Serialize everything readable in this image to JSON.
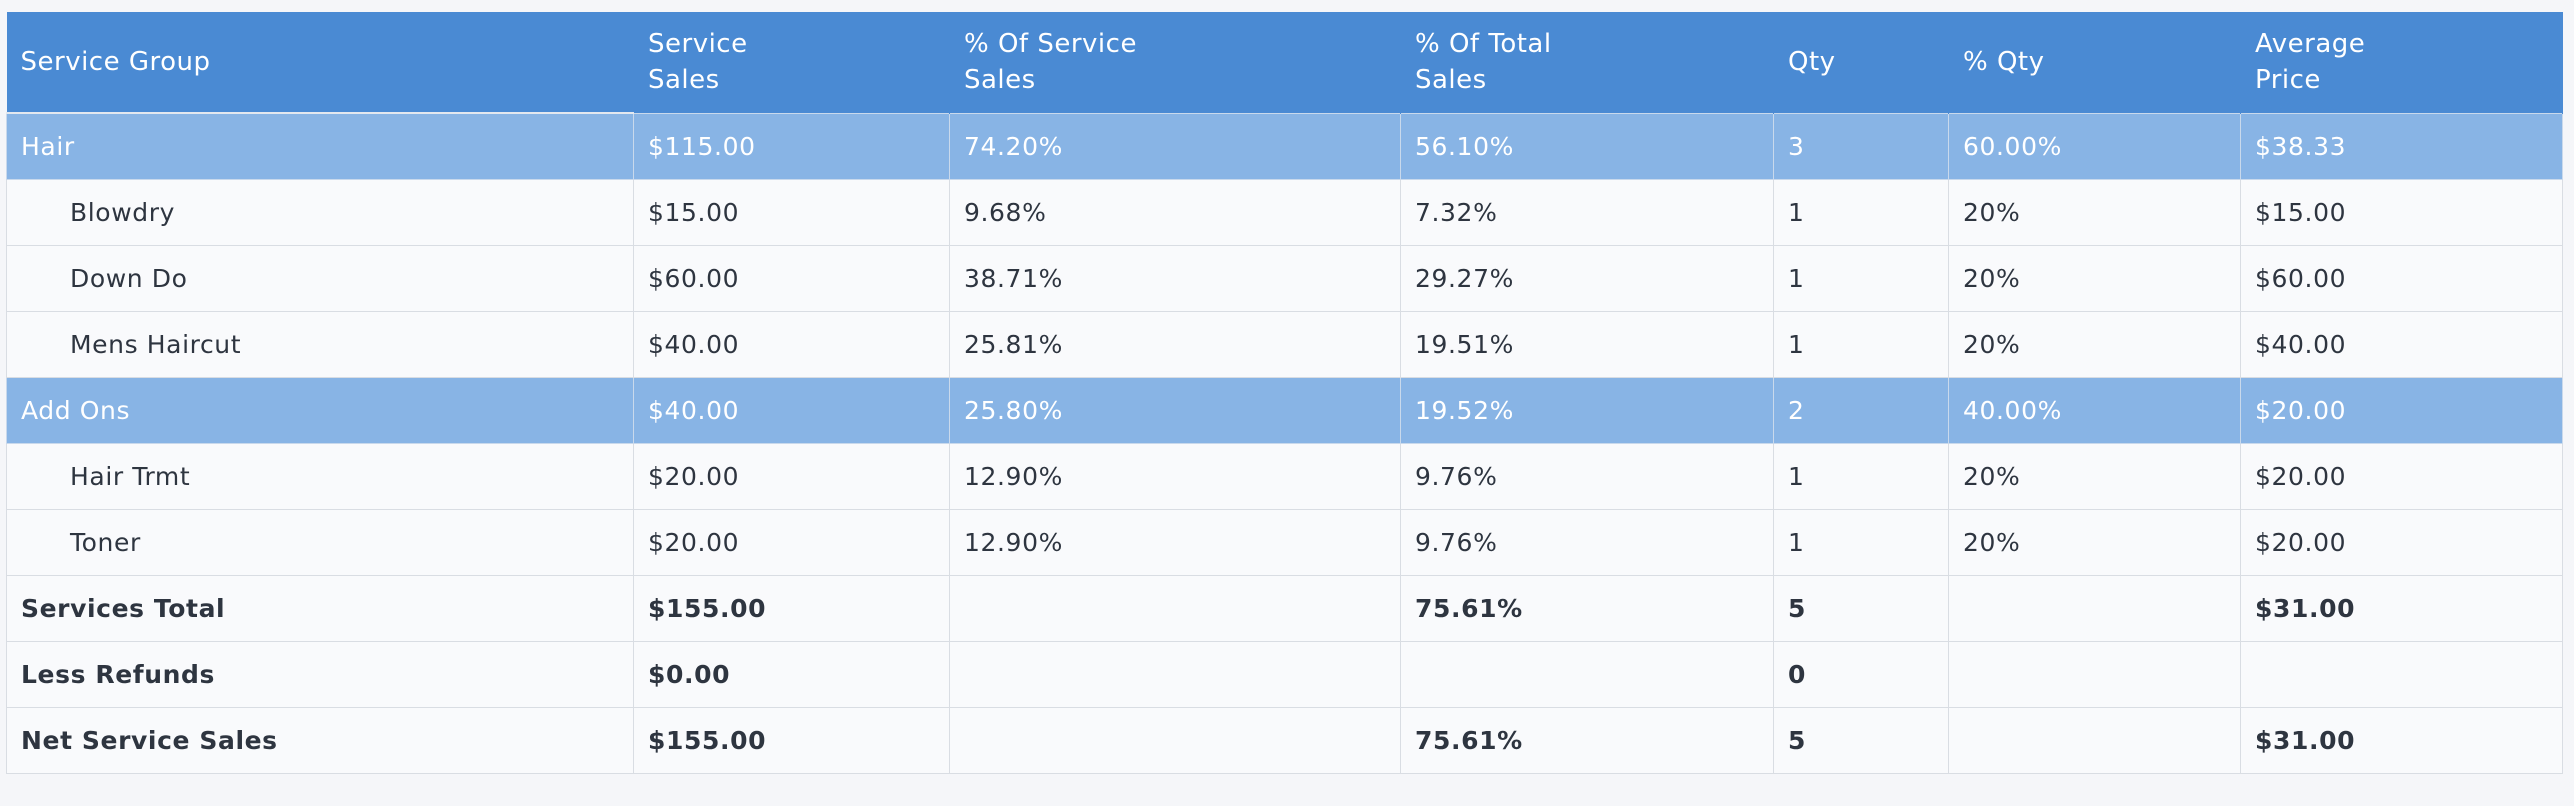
{
  "columns": [
    "Service Group",
    "Service Sales",
    "% Of Service Sales",
    "% Of Total Sales",
    "Qty",
    "% Qty",
    "Average Price"
  ],
  "header": {
    "service_group": "Service Group",
    "service_sales_l1": "Service",
    "service_sales_l2": "Sales",
    "pct_service_sales_l1": "% Of Service",
    "pct_service_sales_l2": "Sales",
    "pct_total_sales_l1": "% Of Total",
    "pct_total_sales_l2": "Sales",
    "qty": "Qty",
    "pct_qty": "% Qty",
    "avg_price_l1": "Average",
    "avg_price_l2": "Price"
  },
  "rows": [
    {
      "type": "group",
      "name": "Hair",
      "service_sales": "$115.00",
      "pct_service_sales": "74.20%",
      "pct_total_sales": "56.10%",
      "qty": "3",
      "pct_qty": "60.00%",
      "avg_price": "$38.33"
    },
    {
      "type": "item",
      "name": "Blowdry",
      "service_sales": "$15.00",
      "pct_service_sales": "9.68%",
      "pct_total_sales": "7.32%",
      "qty": "1",
      "pct_qty": "20%",
      "avg_price": "$15.00"
    },
    {
      "type": "item",
      "name": "Down Do",
      "service_sales": "$60.00",
      "pct_service_sales": "38.71%",
      "pct_total_sales": "29.27%",
      "qty": "1",
      "pct_qty": "20%",
      "avg_price": "$60.00"
    },
    {
      "type": "item",
      "name": "Mens Haircut",
      "service_sales": "$40.00",
      "pct_service_sales": "25.81%",
      "pct_total_sales": "19.51%",
      "qty": "1",
      "pct_qty": "20%",
      "avg_price": "$40.00"
    },
    {
      "type": "group",
      "name": "Add Ons",
      "service_sales": "$40.00",
      "pct_service_sales": "25.80%",
      "pct_total_sales": "19.52%",
      "qty": "2",
      "pct_qty": "40.00%",
      "avg_price": "$20.00"
    },
    {
      "type": "item",
      "name": "Hair Trmt",
      "service_sales": "$20.00",
      "pct_service_sales": "12.90%",
      "pct_total_sales": "9.76%",
      "qty": "1",
      "pct_qty": "20%",
      "avg_price": "$20.00"
    },
    {
      "type": "item",
      "name": "Toner",
      "service_sales": "$20.00",
      "pct_service_sales": "12.90%",
      "pct_total_sales": "9.76%",
      "qty": "1",
      "pct_qty": "20%",
      "avg_price": "$20.00"
    },
    {
      "type": "total",
      "name": "Services Total",
      "service_sales": "$155.00",
      "pct_service_sales": "",
      "pct_total_sales": "75.61%",
      "qty": "5",
      "pct_qty": "",
      "avg_price": "$31.00"
    },
    {
      "type": "total",
      "name": "Less Refunds",
      "service_sales": "$0.00",
      "pct_service_sales": "",
      "pct_total_sales": "",
      "qty": "0",
      "pct_qty": "",
      "avg_price": ""
    },
    {
      "type": "total",
      "name": "Net Service Sales",
      "service_sales": "$155.00",
      "pct_service_sales": "",
      "pct_total_sales": "75.61%",
      "qty": "5",
      "pct_qty": "",
      "avg_price": "$31.00"
    }
  ],
  "colors": {
    "header_bg": "#4a8ad3",
    "group_row_bg": "#88b4e5",
    "row_bg": "#f9fafc",
    "text": "#2e3540"
  }
}
